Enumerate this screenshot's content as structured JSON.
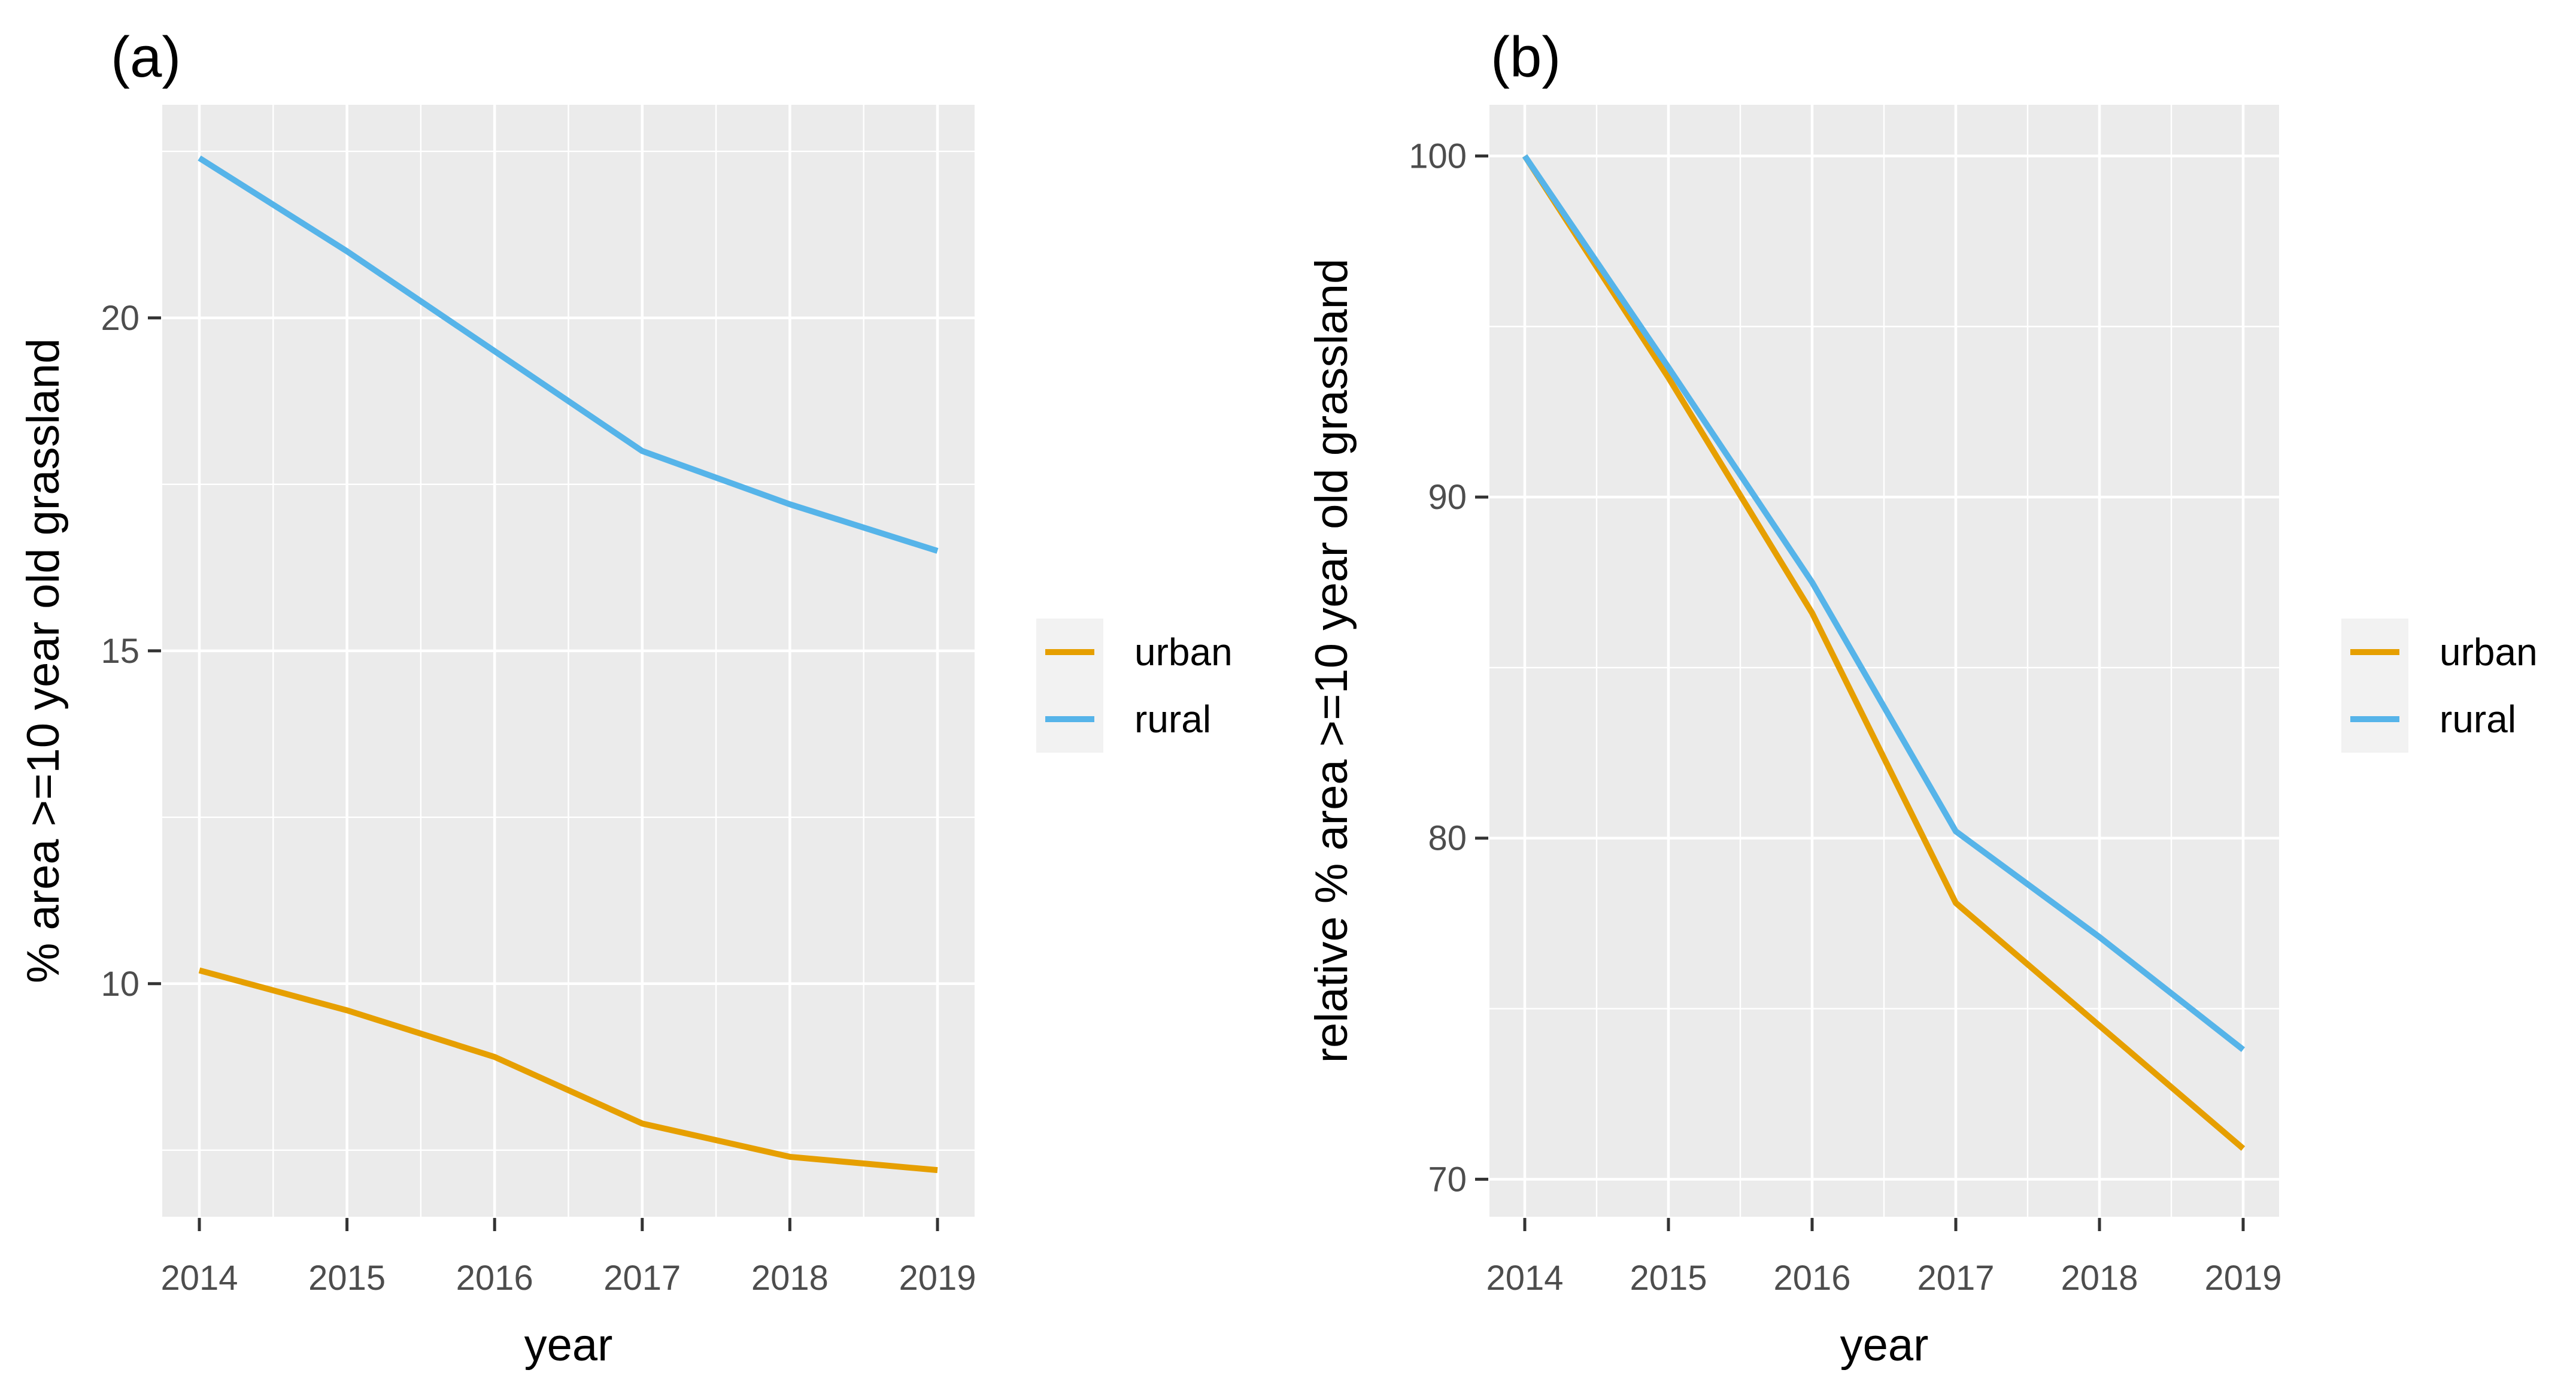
{
  "panels": [
    {
      "label": "(a)",
      "x_axis": {
        "title": "year",
        "tick_labels": [
          "2014",
          "2015",
          "2016",
          "2017",
          "2018",
          "2019"
        ]
      },
      "y_axis": {
        "title": "% area >=10 year old grassland",
        "tick_labels": [
          "10",
          "15",
          "20"
        ]
      }
    },
    {
      "label": "(b)",
      "x_axis": {
        "title": "year",
        "tick_labels": [
          "2014",
          "2015",
          "2016",
          "2017",
          "2018",
          "2019"
        ]
      },
      "y_axis": {
        "title": "relative % area >=10 year old grassland",
        "tick_labels": [
          "70",
          "80",
          "90",
          "100"
        ]
      }
    }
  ],
  "legend": {
    "items": [
      {
        "label": "urban",
        "color": "#E69F00"
      },
      {
        "label": "rural",
        "color": "#56B4E9"
      }
    ]
  },
  "colors": {
    "background": "#FFFFFF",
    "panel_bg": "#EBEBEB",
    "gridline": "#FFFFFF",
    "tick_mark": "#333333",
    "tick_label": "#4D4D4D",
    "axis_title": "#000000",
    "panel_label": "#000000",
    "legend_key_bg": "#F2F2F2"
  },
  "chart_data": [
    {
      "type": "line",
      "panel_label": "(a)",
      "title": "(a)",
      "x": [
        2014,
        2015,
        2016,
        2017,
        2018,
        2019
      ],
      "series": [
        {
          "name": "urban",
          "color": "#E69F00",
          "values": [
            10.2,
            9.6,
            8.9,
            7.9,
            7.4,
            7.2
          ]
        },
        {
          "name": "rural",
          "color": "#56B4E9",
          "values": [
            22.4,
            21.0,
            19.5,
            18.0,
            17.2,
            16.5
          ]
        }
      ],
      "xlabel": "year",
      "ylabel": "% area >=10 year old grassland",
      "xticks": [
        2014,
        2015,
        2016,
        2017,
        2018,
        2019
      ],
      "yticks": [
        10,
        15,
        20
      ],
      "y_minor_gridlines": [
        7.5,
        12.5,
        17.5,
        22.5
      ],
      "ylim": [
        6.5,
        23.2
      ],
      "grid": true,
      "legend_position": "right",
      "legend_entries": [
        "urban",
        "rural"
      ]
    },
    {
      "type": "line",
      "panel_label": "(b)",
      "title": "(b)",
      "x": [
        2014,
        2015,
        2016,
        2017,
        2018,
        2019
      ],
      "series": [
        {
          "name": "urban",
          "color": "#E69F00",
          "values": [
            100,
            93.5,
            86.6,
            78.1,
            74.5,
            70.9
          ]
        },
        {
          "name": "rural",
          "color": "#56B4E9",
          "values": [
            100,
            93.8,
            87.5,
            80.2,
            77.1,
            73.8
          ]
        }
      ],
      "xlabel": "year",
      "ylabel": "relative % area >=10 year old grassland",
      "xticks": [
        2014,
        2015,
        2016,
        2017,
        2018,
        2019
      ],
      "yticks": [
        70,
        80,
        90,
        100
      ],
      "y_minor_gridlines": [
        75,
        85,
        95
      ],
      "ylim": [
        68.9,
        101.5
      ],
      "grid": true,
      "legend_position": "right",
      "legend_entries": [
        "urban",
        "rural"
      ]
    }
  ]
}
